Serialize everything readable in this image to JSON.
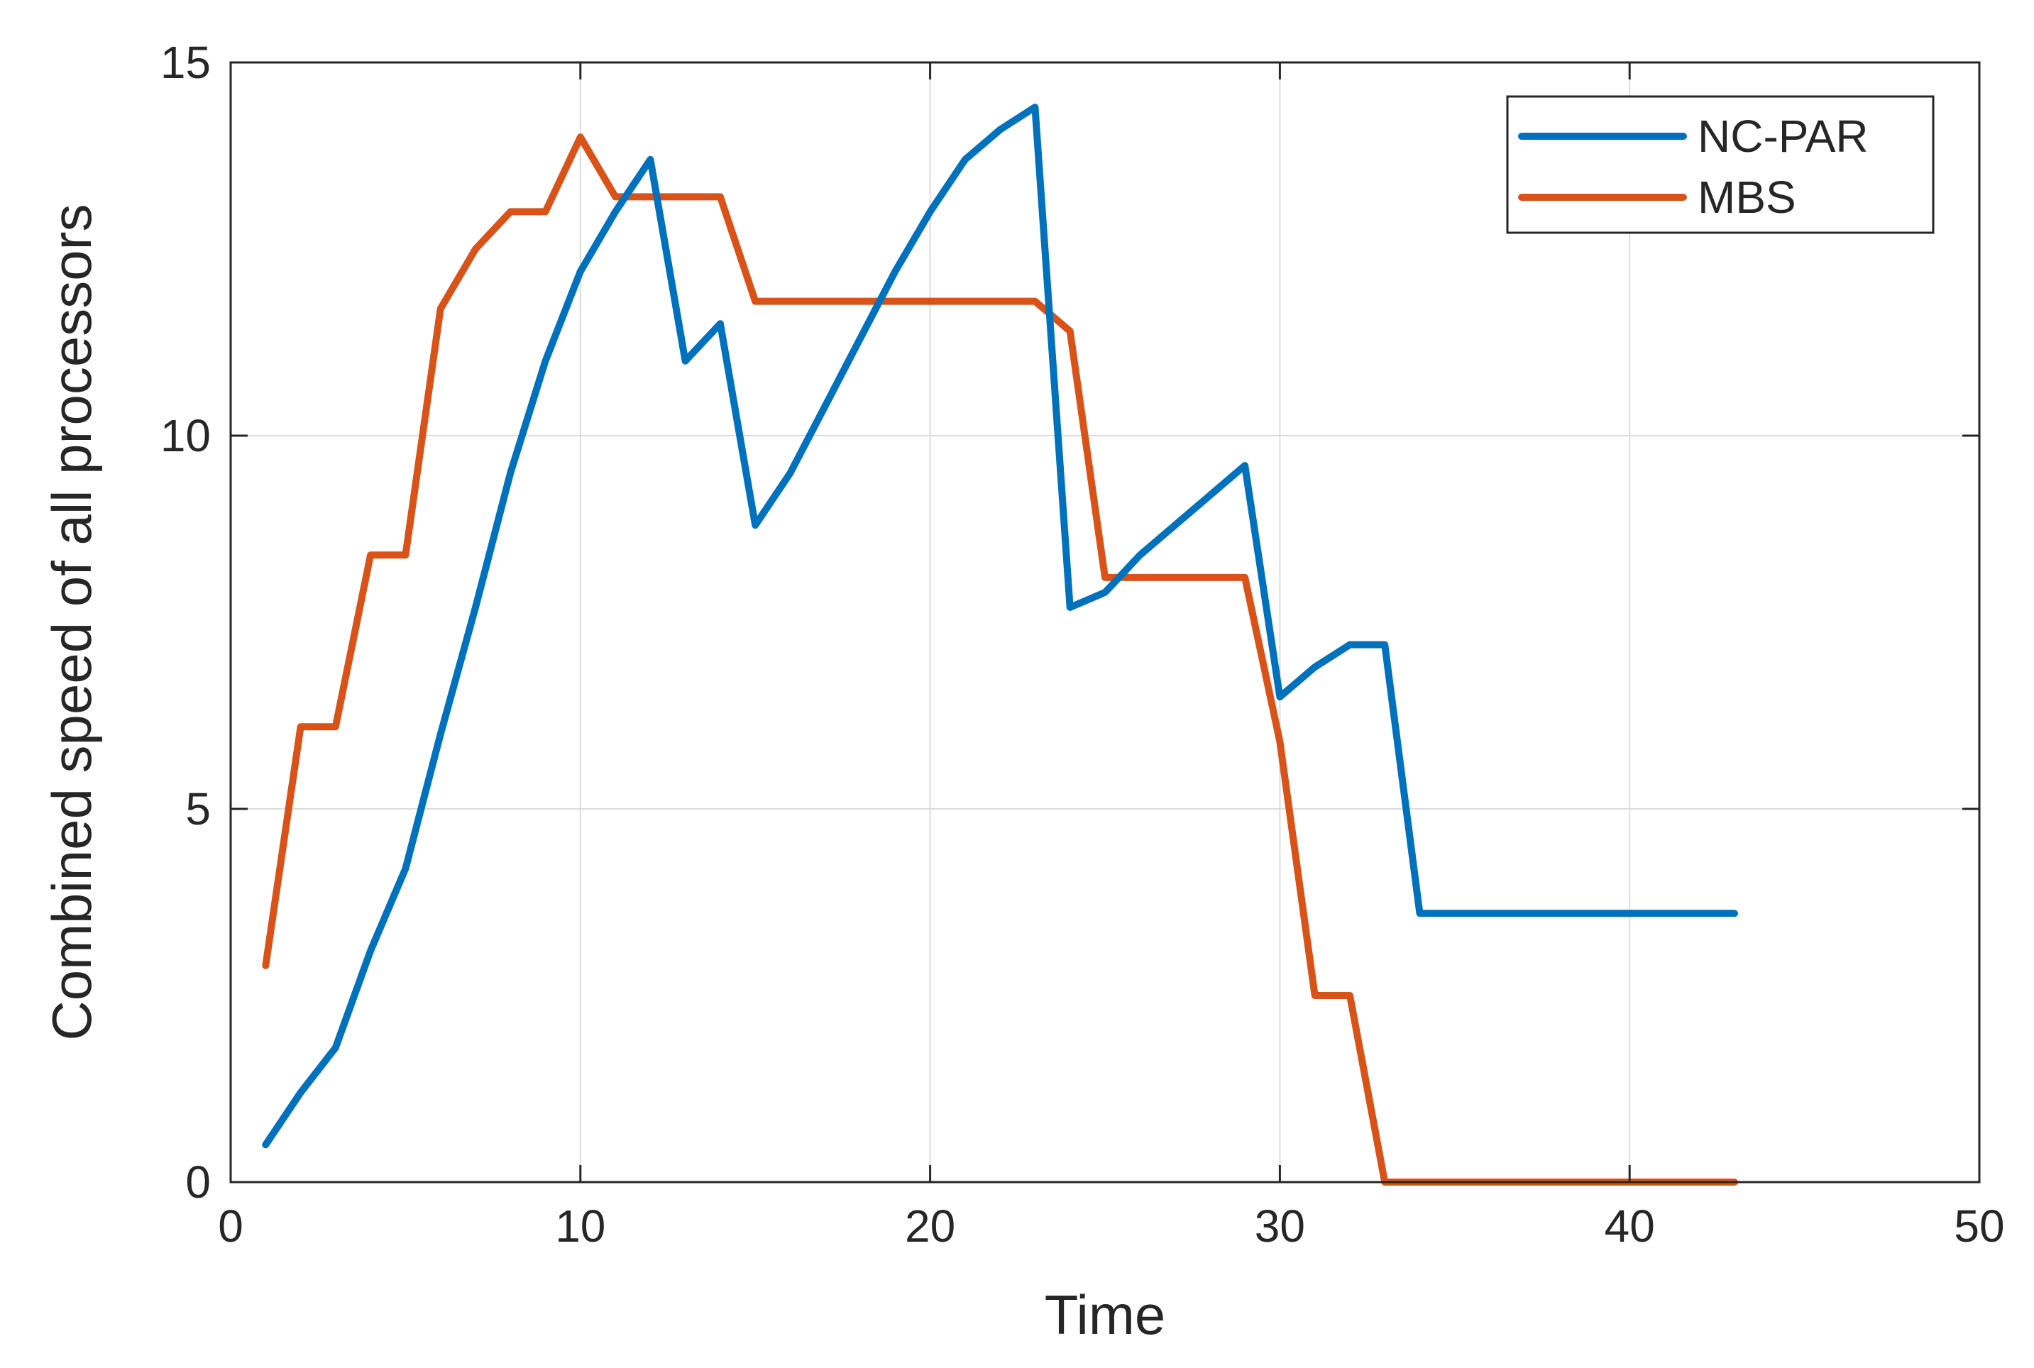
{
  "chart_data": {
    "type": "line",
    "title": "",
    "xlabel": "Time",
    "ylabel": "Combined speed of all processors",
    "xlim": [
      0,
      50
    ],
    "ylim": [
      0,
      15
    ],
    "xticks": [
      0,
      10,
      20,
      30,
      40,
      50
    ],
    "yticks": [
      0,
      5,
      10,
      15
    ],
    "grid": true,
    "legend_position": "top-right",
    "series": [
      {
        "name": "NC-PAR",
        "color": "#0072BD",
        "x": [
          1,
          2,
          3,
          4,
          5,
          6,
          7,
          8,
          9,
          10,
          11,
          12,
          13,
          14,
          15,
          16,
          17,
          18,
          19,
          20,
          21,
          22,
          23,
          24,
          25,
          26,
          27,
          28,
          29,
          30,
          31,
          32,
          33,
          34,
          35,
          36,
          37,
          38,
          39,
          40,
          41,
          42,
          43
        ],
        "y": [
          0.5,
          1.2,
          1.8,
          3.1,
          4.2,
          6.0,
          7.7,
          9.5,
          11.0,
          12.2,
          13.0,
          13.7,
          11.0,
          11.5,
          8.8,
          9.5,
          10.4,
          11.3,
          12.2,
          13.0,
          13.7,
          14.1,
          14.4,
          7.7,
          7.9,
          8.4,
          8.8,
          9.2,
          9.6,
          6.5,
          6.9,
          7.2,
          7.2,
          3.6,
          3.6,
          3.6,
          3.6,
          3.6,
          3.6,
          3.6,
          3.6,
          3.6,
          3.6
        ]
      },
      {
        "name": "MBS",
        "color": "#D95319",
        "x": [
          1,
          2,
          3,
          4,
          5,
          6,
          7,
          8,
          9,
          10,
          11,
          12,
          13,
          14,
          15,
          16,
          17,
          18,
          19,
          20,
          21,
          22,
          23,
          24,
          25,
          26,
          27,
          28,
          29,
          30,
          31,
          32,
          33,
          34,
          35,
          36,
          37,
          38,
          39,
          40,
          41,
          42,
          43
        ],
        "y": [
          2.9,
          6.1,
          6.1,
          8.4,
          8.4,
          11.7,
          12.5,
          13.0,
          13.0,
          14.0,
          13.2,
          13.2,
          13.2,
          13.2,
          11.8,
          11.8,
          11.8,
          11.8,
          11.8,
          11.8,
          11.8,
          11.8,
          11.8,
          11.4,
          8.1,
          8.1,
          8.1,
          8.1,
          8.1,
          5.9,
          2.5,
          2.5,
          0.0,
          0.0,
          0.0,
          0.0,
          0.0,
          0.0,
          0.0,
          0.0,
          0.0,
          0.0,
          0.0
        ]
      }
    ]
  }
}
